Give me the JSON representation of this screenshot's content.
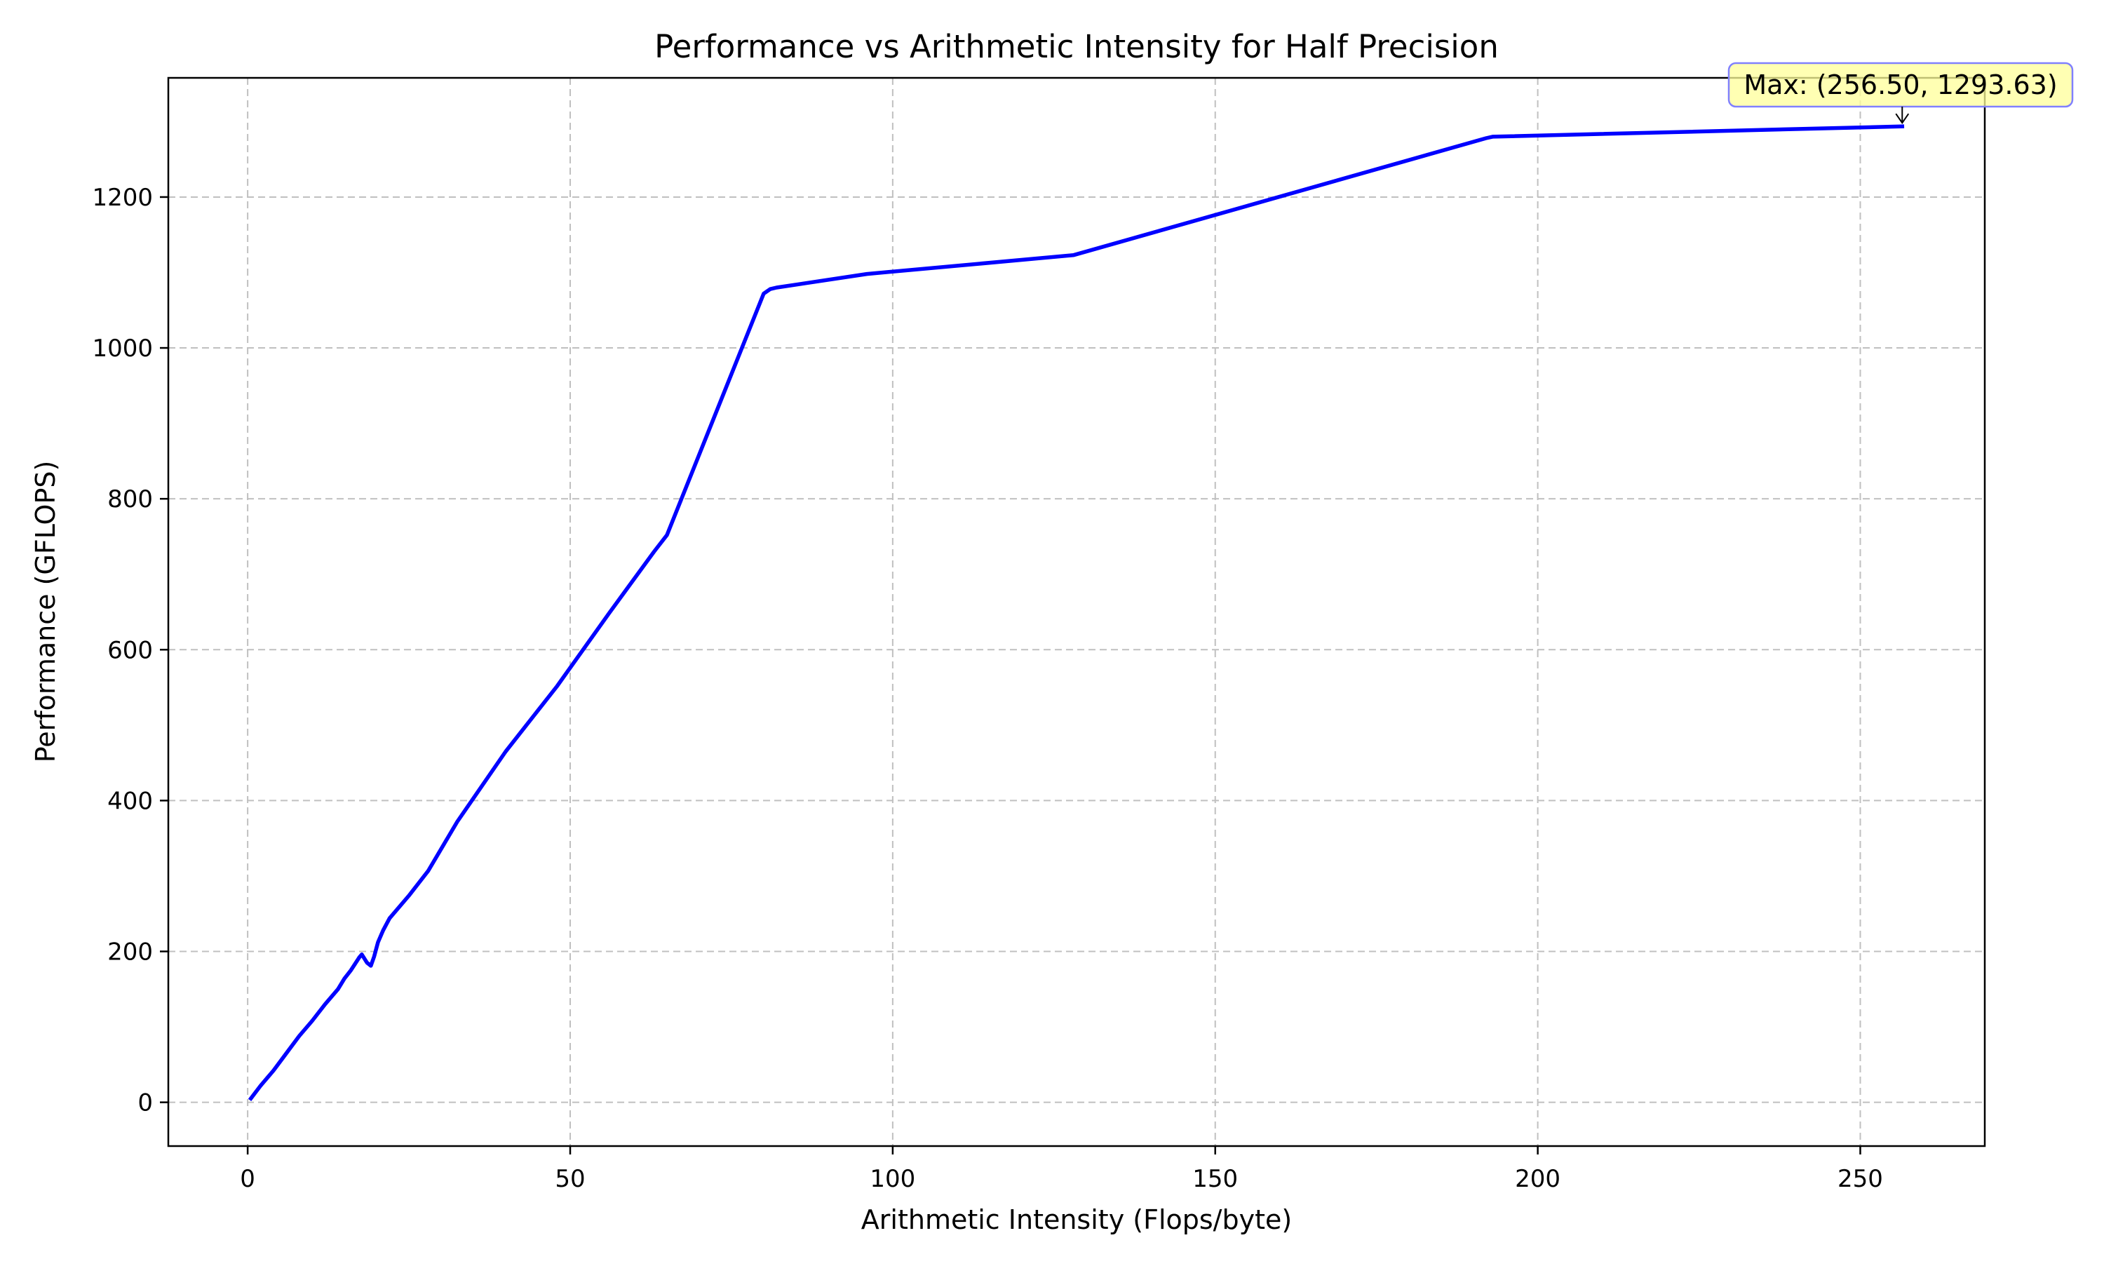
{
  "chart_data": {
    "type": "line",
    "title": "Performance vs Arithmetic Intensity for Half Precision",
    "xlabel": "Arithmetic Intensity (Flops/byte)",
    "ylabel": "Performance (GFLOPS)",
    "xlim": [
      -12.3,
      269.3
    ],
    "ylim": [
      -58,
      1358
    ],
    "xticks": [
      0,
      50,
      100,
      150,
      200,
      250
    ],
    "yticks": [
      0,
      200,
      400,
      600,
      800,
      1000,
      1200
    ],
    "grid": true,
    "grid_style": "dashed",
    "series": [
      {
        "color": "#0000ff",
        "points": [
          [
            0.5,
            5
          ],
          [
            2,
            22
          ],
          [
            4,
            42
          ],
          [
            6,
            65
          ],
          [
            8,
            88
          ],
          [
            10,
            108
          ],
          [
            12,
            130
          ],
          [
            14,
            150
          ],
          [
            15,
            164
          ],
          [
            16,
            175
          ],
          [
            17.3,
            192
          ],
          [
            17.7,
            196
          ],
          [
            18.5,
            185
          ],
          [
            19.1,
            181
          ],
          [
            19.6,
            193
          ],
          [
            20.2,
            212
          ],
          [
            21,
            228
          ],
          [
            22,
            244
          ],
          [
            25,
            274
          ],
          [
            28,
            307
          ],
          [
            32.5,
            372
          ],
          [
            40,
            465
          ],
          [
            48,
            552
          ],
          [
            56,
            648
          ],
          [
            63,
            730
          ],
          [
            65,
            752
          ],
          [
            80,
            1072
          ],
          [
            81,
            1078
          ],
          [
            82,
            1080
          ],
          [
            96,
            1098
          ],
          [
            128,
            1123
          ],
          [
            192,
            1278
          ],
          [
            193,
            1280
          ],
          [
            256.5,
            1293.63
          ]
        ]
      }
    ],
    "annotation": {
      "text": "Max: (256.50, 1293.63)",
      "point": [
        256.5,
        1293.63
      ],
      "box_color": "#ffff99",
      "border_color": "#8080ff"
    }
  }
}
